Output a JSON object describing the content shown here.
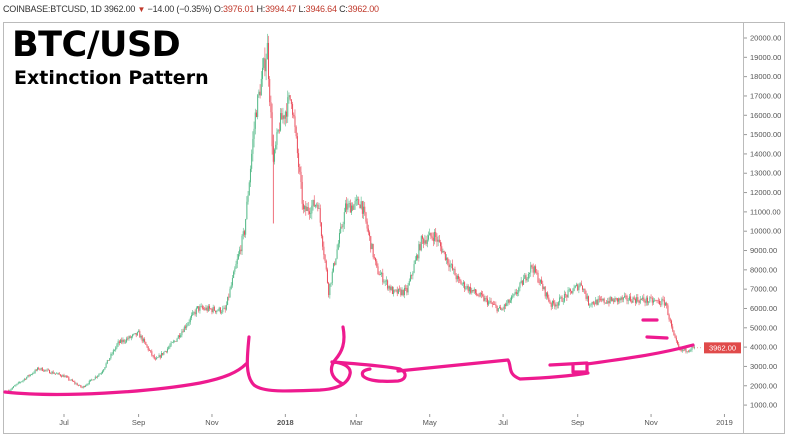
{
  "header": {
    "symbol": "COINBASE:BTCUSD, 1D",
    "last": "3962.00",
    "change": "−14.00 (−0.35%)",
    "open_label": "O:",
    "open": "3976.01",
    "high_label": "H:",
    "high": "3994.47",
    "low_label": "L:",
    "low": "3946.64",
    "close_label": "C:",
    "close": "3962.00"
  },
  "annotation": {
    "title": "BTC/USD",
    "subtitle": "Extinction Pattern"
  },
  "colors": {
    "up": "#53b987",
    "down": "#eb4d5c",
    "drawing": "#ee1a8f",
    "price_tag": "#e04a4a"
  },
  "chart_data": {
    "type": "candlestick",
    "title": "BTC/USD",
    "subtitle": "Extinction Pattern",
    "interval": "1D",
    "y_ticks": [
      "20000.00",
      "19000.00",
      "18000.00",
      "17000.00",
      "16000.00",
      "15000.00",
      "14000.00",
      "13000.00",
      "12000.00",
      "11000.00",
      "10000.00",
      "9000.00",
      "8000.00",
      "7000.00",
      "6000.00",
      "5000.00",
      "4000.00",
      "3000.00",
      "2000.00",
      "1000.00"
    ],
    "y_tick_values": [
      20000,
      19000,
      18000,
      17000,
      16000,
      15000,
      14000,
      13000,
      12000,
      11000,
      10000,
      9000,
      8000,
      7000,
      6000,
      5000,
      4000,
      3000,
      2000,
      1000
    ],
    "x_ticks": [
      "Jul",
      "Sep",
      "Nov",
      "2018",
      "Mar",
      "May",
      "Jul",
      "Sep",
      "Nov",
      "2019"
    ],
    "x_tick_dates": [
      "2017-07-01",
      "2017-09-01",
      "2017-11-01",
      "2018-01-01",
      "2018-03-01",
      "2018-05-01",
      "2018-07-01",
      "2018-09-01",
      "2018-11-01",
      "2019-01-01"
    ],
    "ylim": [
      600,
      20700
    ],
    "xlim": [
      "2017-05-16",
      "2019-01-12"
    ],
    "current_price_label": "3962.00",
    "current_price": 3962,
    "price_path": [
      [
        "2017-05-16",
        1750
      ],
      [
        "2017-06-10",
        2900
      ],
      [
        "2017-07-01",
        2500
      ],
      [
        "2017-07-16",
        1900
      ],
      [
        "2017-08-01",
        2700
      ],
      [
        "2017-08-15",
        4200
      ],
      [
        "2017-09-01",
        4700
      ],
      [
        "2017-09-15",
        3300
      ],
      [
        "2017-10-01",
        4300
      ],
      [
        "2017-10-20",
        6000
      ],
      [
        "2017-11-12",
        5900
      ],
      [
        "2017-11-28",
        10000
      ],
      [
        "2017-12-07",
        16000
      ],
      [
        "2017-12-17",
        19500
      ],
      [
        "2017-12-22",
        13500
      ],
      [
        "2017-12-27",
        15500
      ],
      [
        "2018-01-06",
        17000
      ],
      [
        "2018-01-16",
        11000
      ],
      [
        "2018-01-28",
        11500
      ],
      [
        "2018-02-06",
        6900
      ],
      [
        "2018-02-20",
        11200
      ],
      [
        "2018-03-05",
        11500
      ],
      [
        "2018-03-18",
        8000
      ],
      [
        "2018-04-01",
        6800
      ],
      [
        "2018-04-12",
        6900
      ],
      [
        "2018-04-24",
        9500
      ],
      [
        "2018-05-05",
        9800
      ],
      [
        "2018-05-25",
        7400
      ],
      [
        "2018-06-10",
        6700
      ],
      [
        "2018-06-29",
        5900
      ],
      [
        "2018-07-10",
        6600
      ],
      [
        "2018-07-25",
        8200
      ],
      [
        "2018-08-10",
        6200
      ],
      [
        "2018-08-15",
        6300
      ],
      [
        "2018-09-04",
        7300
      ],
      [
        "2018-09-10",
        6300
      ],
      [
        "2018-10-15",
        6500
      ],
      [
        "2018-11-13",
        6300
      ],
      [
        "2018-11-20",
        4500
      ],
      [
        "2018-11-25",
        3800
      ],
      [
        "2018-12-07",
        3962
      ]
    ]
  }
}
